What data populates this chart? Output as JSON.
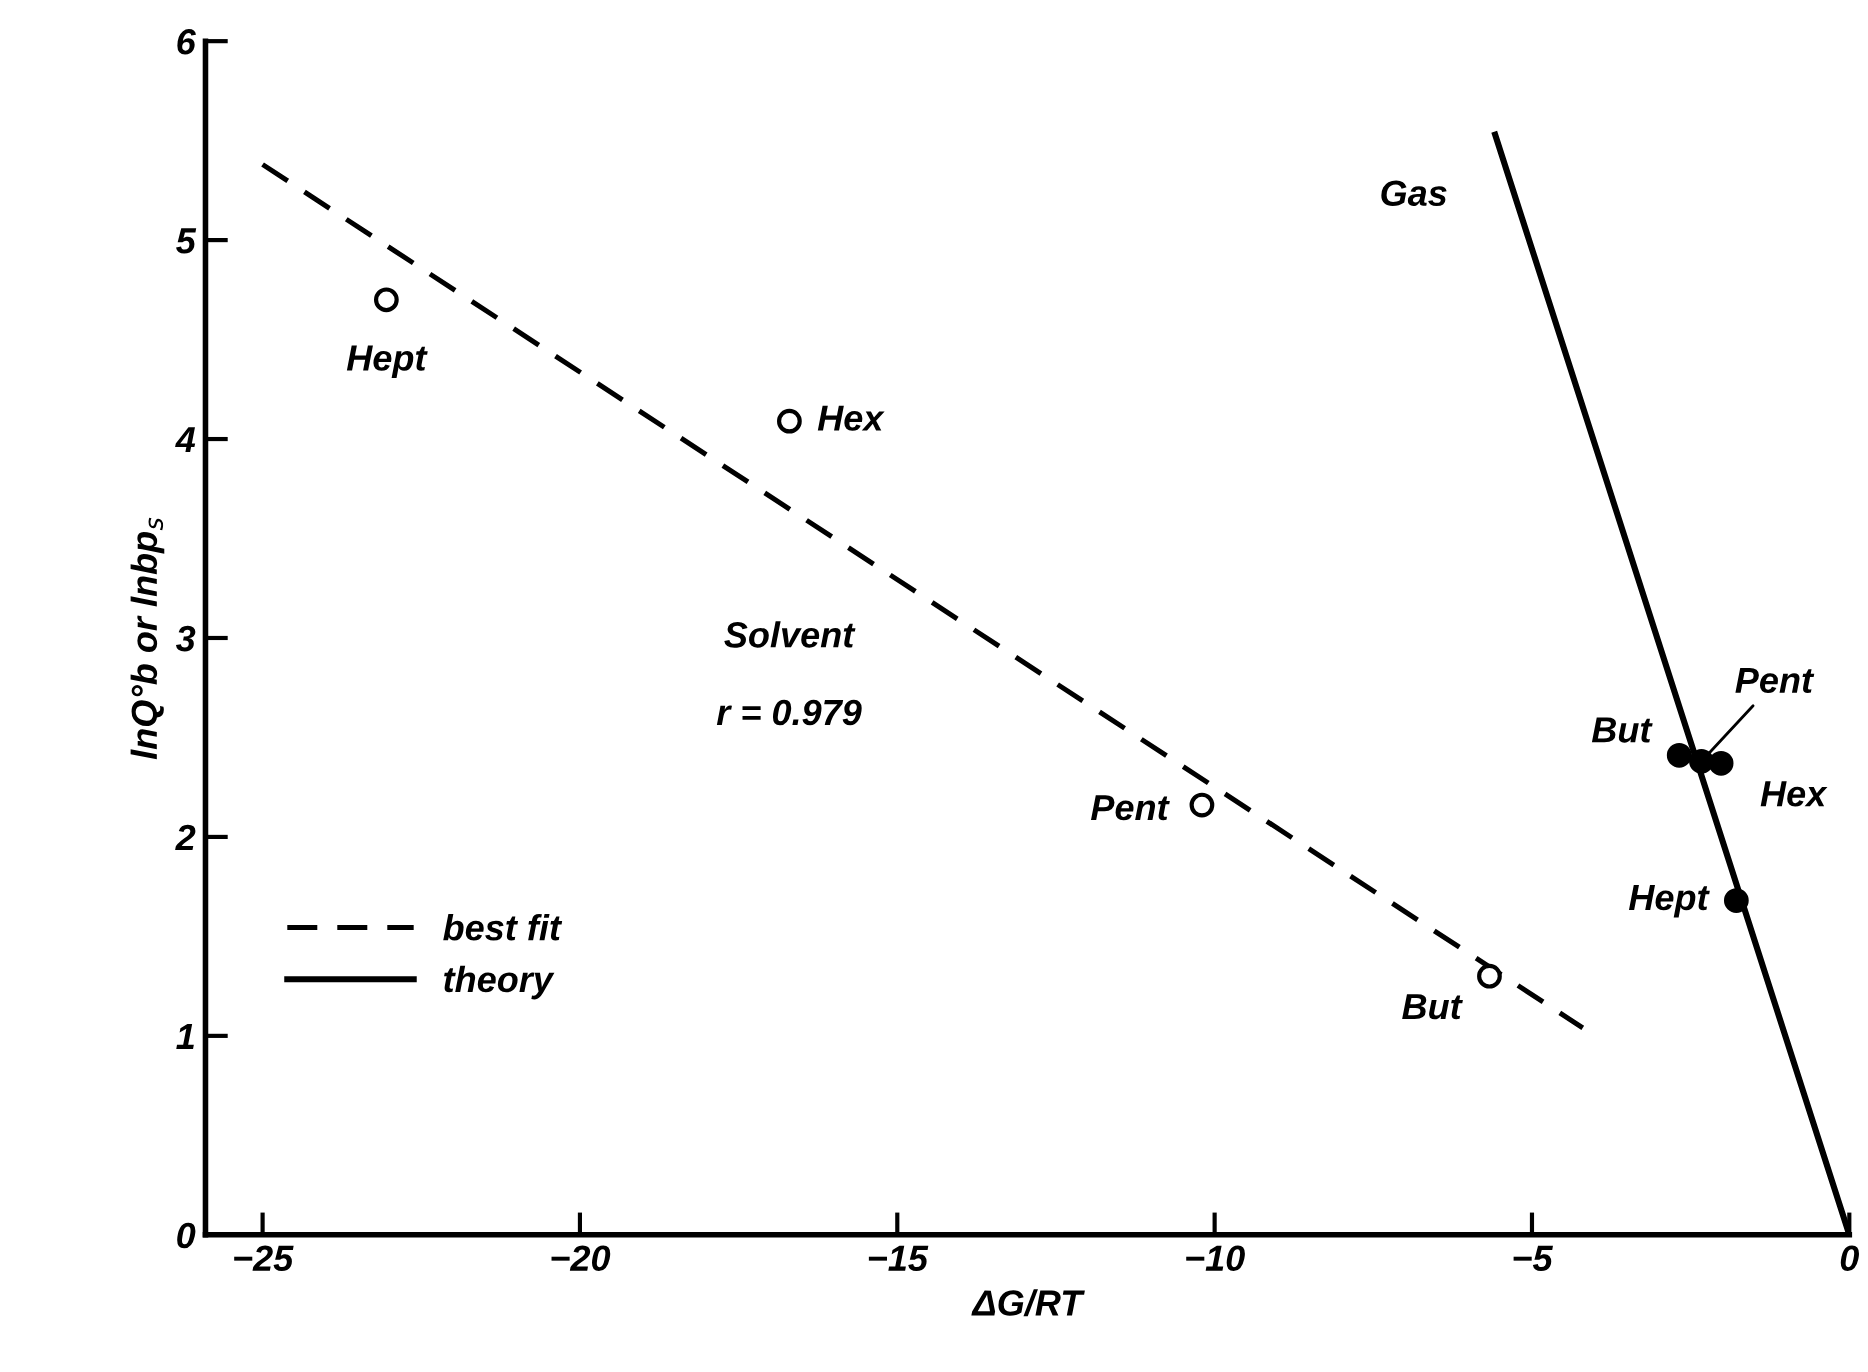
{
  "chart_data": {
    "type": "scatter",
    "xlabel": "ΔG/RT",
    "ylabel": "lnQ°b or lnbp$_{s}$",
    "xlim": [
      -25.9,
      0
    ],
    "ylim": [
      0,
      6
    ],
    "xticks": [
      {
        "value": -25,
        "label": "−25"
      },
      {
        "value": -20,
        "label": "−20"
      },
      {
        "value": -15,
        "label": "−15"
      },
      {
        "value": -10,
        "label": "−10"
      },
      {
        "value": -5,
        "label": "−5"
      },
      0
    ],
    "yticks": [
      0,
      1,
      2,
      3,
      4,
      5,
      6
    ],
    "grid": false,
    "legend": "lower left",
    "series": [
      {
        "marker": "circle",
        "color": "#000000",
        "x": [
          -23.05,
          -16.7,
          -10.2,
          -5.67
        ],
        "values": [
          4.7,
          4.09,
          2.16,
          1.3
        ]
      },
      {
        "marker": "circle",
        "color": "#000000",
        "x": [
          -2.68,
          -2.33,
          -2.02,
          -1.78
        ],
        "values": [
          2.41,
          2.38,
          2.37,
          1.68
        ]
      },
      {
        "type": "line",
        "name": "best fit",
        "line_style": "dashed",
        "marker": "none",
        "color": "#000000",
        "x": [
          -25,
          -4.2
        ],
        "values": [
          5.38,
          1.04
        ]
      },
      {
        "type": "line",
        "name": "theory",
        "line_style": "solid",
        "marker": "none",
        "color": "#000000",
        "x": [
          -5.58,
          0
        ],
        "values": [
          5.53,
          0
        ]
      }
    ],
    "annotations": [
      {
        "text": "Hept",
        "x": -23.05,
        "y": 4.7
      },
      {
        "text": "Hex",
        "x": -16.7,
        "y": 4.09
      },
      {
        "text": "Pent",
        "x": -10.2,
        "y": 2.16
      },
      {
        "text": "But",
        "x": -5.67,
        "y": 1.3
      },
      {
        "text": "But",
        "x": -2.68,
        "y": 2.41
      },
      {
        "text": "Pent",
        "x": -2.33,
        "y": 2.38
      },
      {
        "text": "Hex",
        "x": -2.02,
        "y": 2.37
      },
      {
        "text": "Hept",
        "x": -1.78,
        "y": 1.68
      },
      "Gas",
      "Solvent",
      "r = 0.979"
    ]
  }
}
